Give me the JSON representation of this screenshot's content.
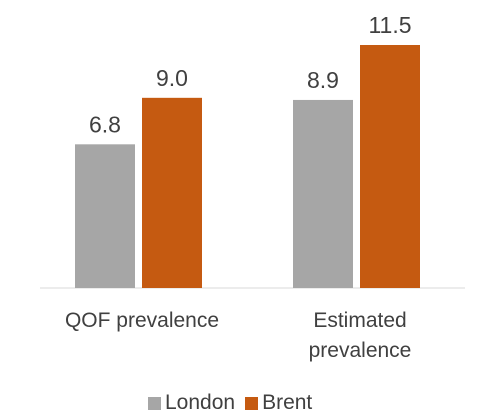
{
  "chart_data": {
    "type": "bar",
    "categories": [
      [
        "QOF prevalence"
      ],
      [
        "Estimated",
        "prevalence"
      ]
    ],
    "series": [
      {
        "name": "London",
        "values": [
          6.8,
          8.9
        ],
        "labels": [
          "6.8",
          "8.9"
        ],
        "color": "#a6a6a6"
      },
      {
        "name": "Brent",
        "values": [
          9.0,
          11.5
        ],
        "labels": [
          "9.0",
          "11.5"
        ],
        "color": "#c55a11"
      }
    ],
    "ylim": [
      0,
      11.5
    ],
    "grid": false,
    "legend_position": "bottom"
  }
}
